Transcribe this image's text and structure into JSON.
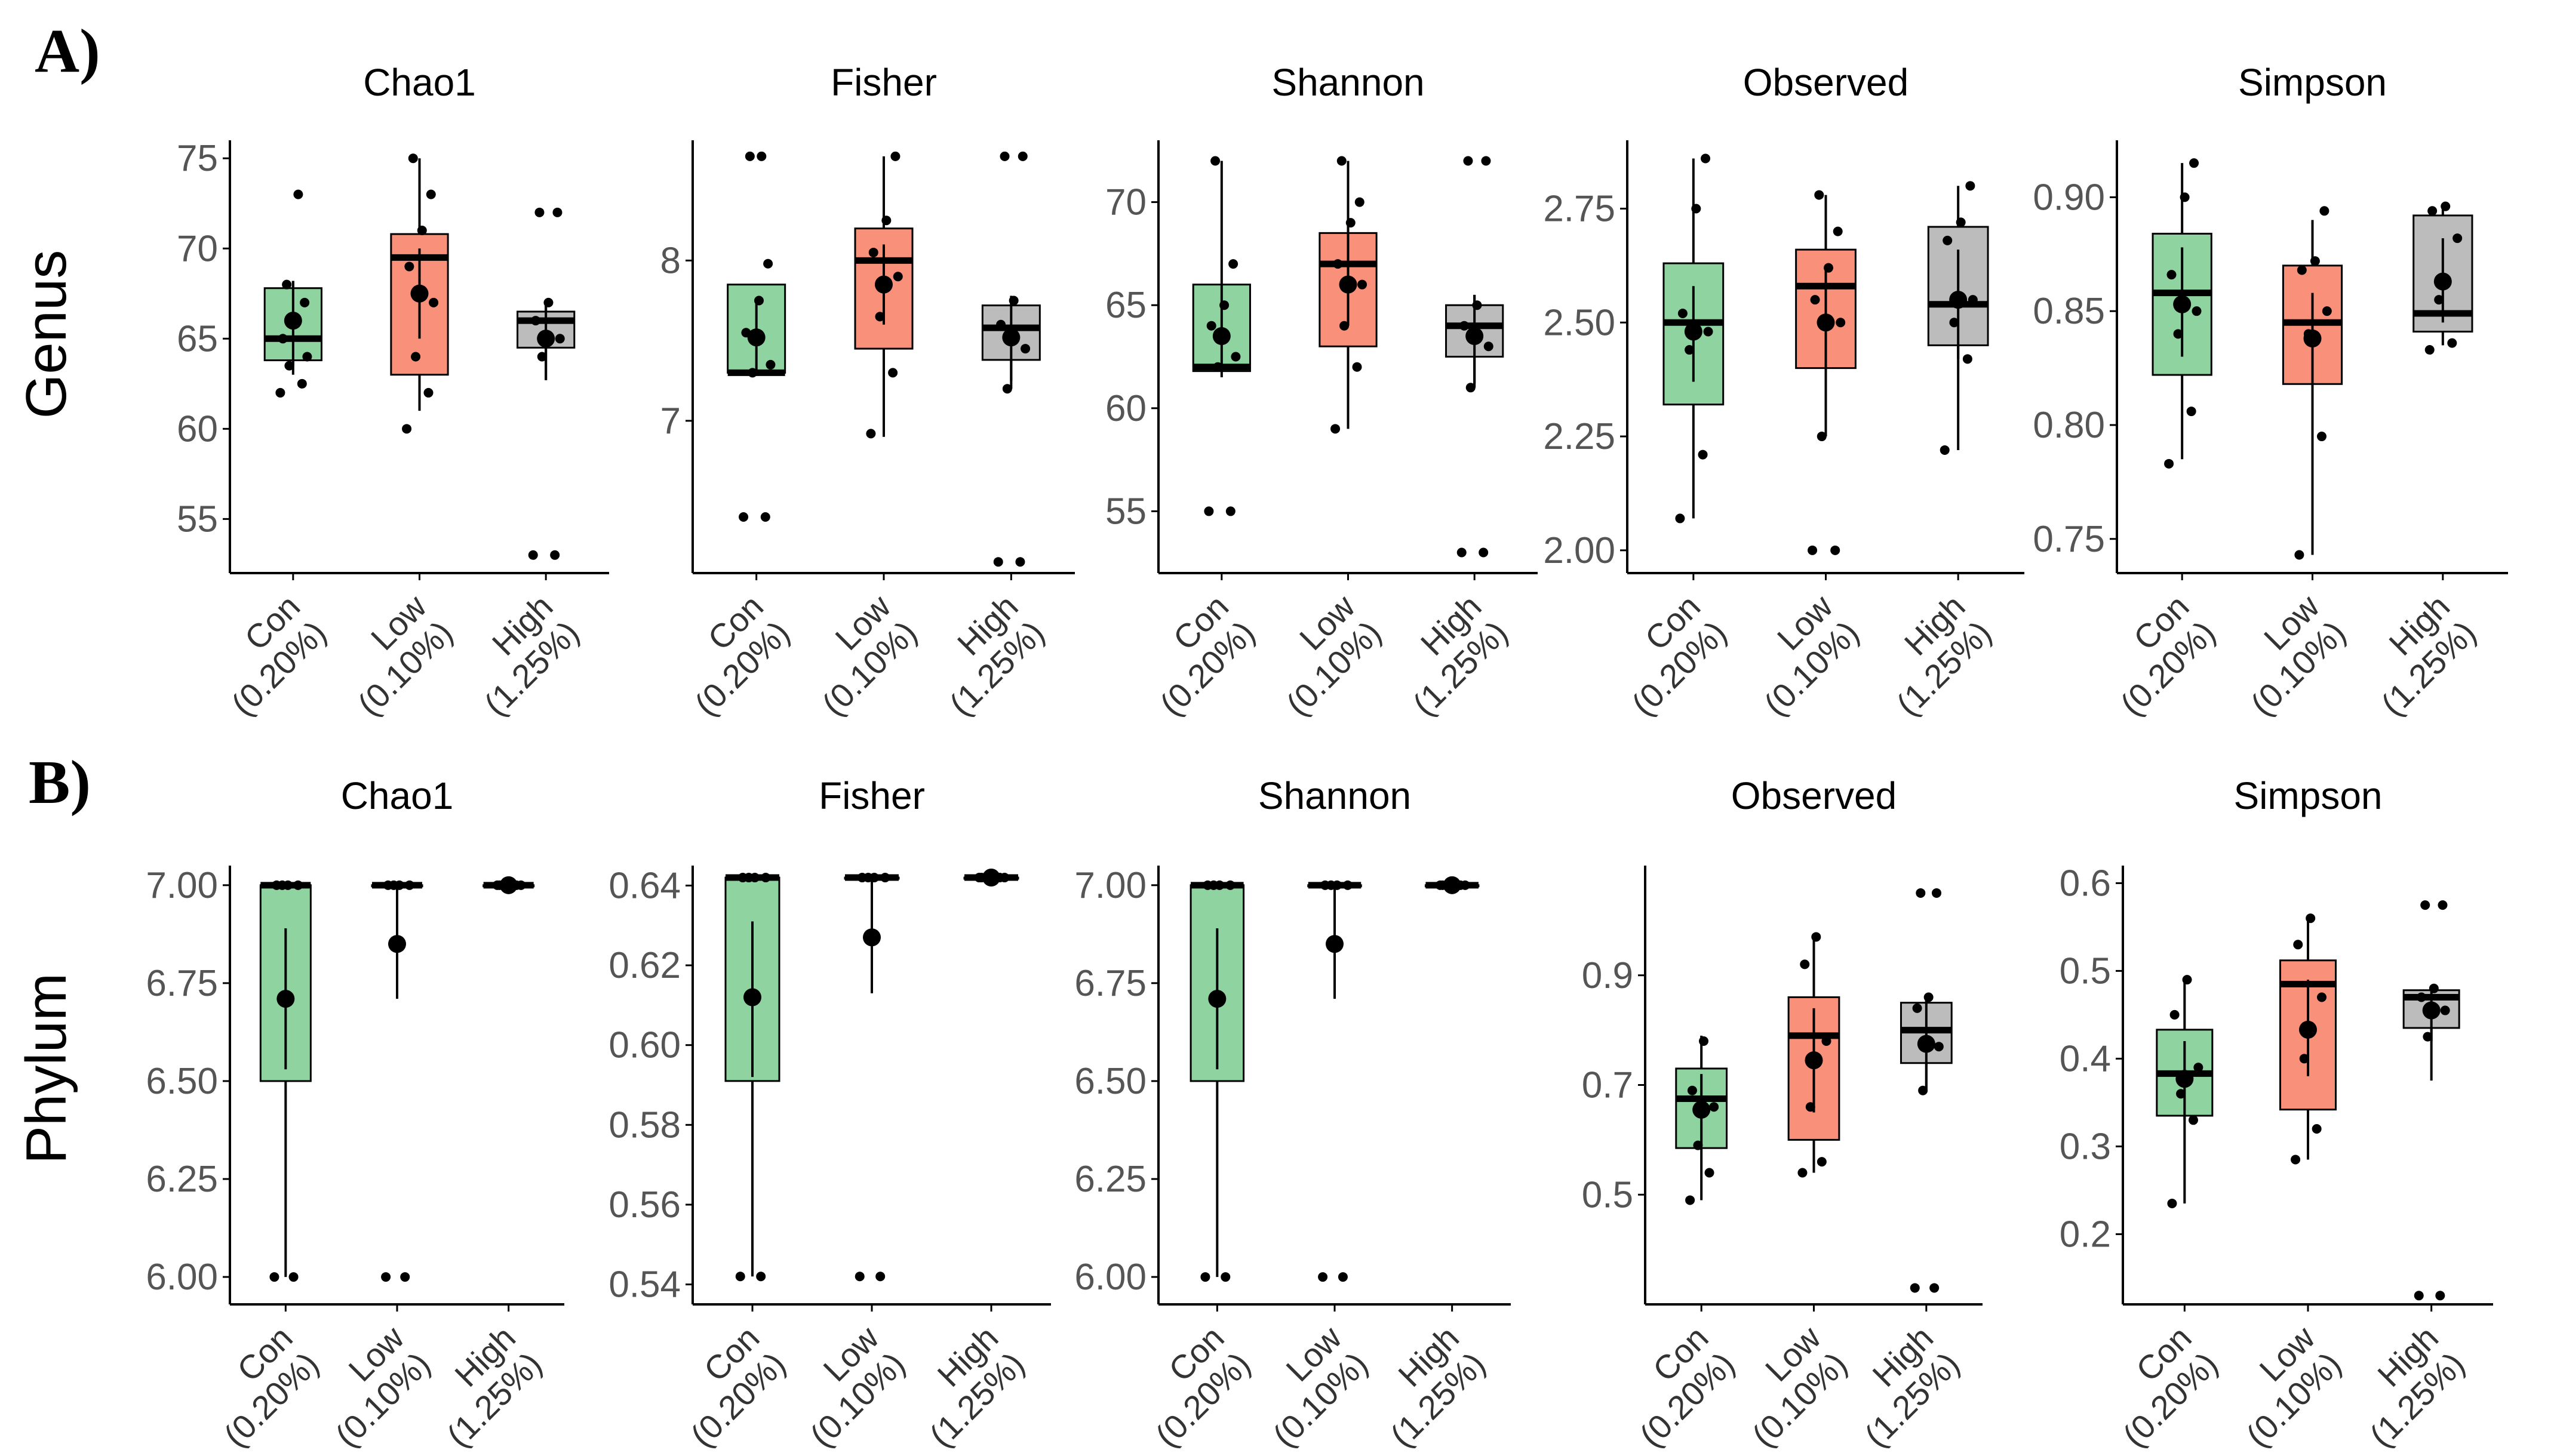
{
  "panels": [
    {
      "label": "A)",
      "row_label": "Genus"
    },
    {
      "label": "B)",
      "row_label": "Phylum"
    }
  ],
  "group_colors": {
    "Con": "#8fd4a0",
    "Low": "#f9917a",
    "High": "#bcbcbc"
  },
  "chart_data": [
    {
      "type": "box",
      "panel": "A",
      "title": "Chao1",
      "categories": [
        [
          "Con",
          "(0.20%)"
        ],
        [
          "Low",
          "(0.10%)"
        ],
        [
          "High",
          "(1.25%)"
        ]
      ],
      "ylim": [
        52,
        76
      ],
      "yticks": [
        55,
        60,
        65,
        70,
        75
      ],
      "ytick_labels": [
        "55",
        "60",
        "65",
        "70",
        "75"
      ],
      "groups": [
        {
          "name": "Con",
          "q1": 63.8,
          "median": 65.0,
          "q3": 67.8,
          "whisker_low": 63.0,
          "whisker_high": 68.2,
          "mean": 66.0,
          "mean_err": [
            63.5,
            68.2
          ],
          "points": [
            62,
            62.5,
            63.5,
            64,
            65,
            66,
            67,
            68,
            73
          ]
        },
        {
          "name": "Low",
          "q1": 63.0,
          "median": 69.5,
          "q3": 70.8,
          "whisker_low": 61.0,
          "whisker_high": 75.0,
          "mean": 67.5,
          "mean_err": [
            65.0,
            70.0
          ],
          "points": [
            60,
            62,
            64,
            67,
            69,
            71,
            73,
            75
          ]
        },
        {
          "name": "High",
          "q1": 64.5,
          "median": 66.0,
          "q3": 66.5,
          "whisker_low": 62.7,
          "whisker_high": 67.0,
          "mean": 65.0,
          "mean_err": [
            62.7,
            67.0
          ],
          "points": [
            53,
            53,
            64,
            65,
            66,
            67,
            72,
            72
          ]
        }
      ]
    },
    {
      "type": "box",
      "panel": "A",
      "title": "Fisher",
      "categories": [
        [
          "Con",
          "(0.20%)"
        ],
        [
          "Low",
          "(0.10%)"
        ],
        [
          "High",
          "(1.25%)"
        ]
      ],
      "ylim": [
        6.05,
        8.75
      ],
      "yticks": [
        7,
        8
      ],
      "ytick_labels": [
        "7",
        "8"
      ],
      "groups": [
        {
          "name": "Con",
          "q1": 7.3,
          "median": 7.3,
          "q3": 7.85,
          "whisker_low": 7.3,
          "whisker_high": 7.85,
          "mean": 7.52,
          "mean_err": [
            7.3,
            7.75
          ],
          "points": [
            6.4,
            6.4,
            7.3,
            7.35,
            7.55,
            7.75,
            7.98,
            8.65,
            8.65
          ]
        },
        {
          "name": "Low",
          "q1": 7.45,
          "median": 8.0,
          "q3": 8.2,
          "whisker_low": 6.9,
          "whisker_high": 8.65,
          "mean": 7.85,
          "mean_err": [
            7.6,
            8.1
          ],
          "points": [
            6.92,
            7.3,
            7.65,
            7.9,
            8.05,
            8.25,
            8.65
          ]
        },
        {
          "name": "High",
          "q1": 7.38,
          "median": 7.58,
          "q3": 7.72,
          "whisker_low": 7.2,
          "whisker_high": 7.78,
          "mean": 7.52,
          "mean_err": [
            7.25,
            7.75
          ],
          "points": [
            6.12,
            6.12,
            7.2,
            7.45,
            7.6,
            7.75,
            8.65,
            8.65
          ]
        }
      ]
    },
    {
      "type": "box",
      "panel": "A",
      "title": "Shannon",
      "categories": [
        [
          "Con",
          "(0.20%)"
        ],
        [
          "Low",
          "(0.10%)"
        ],
        [
          "High",
          "(1.25%)"
        ]
      ],
      "ylim": [
        52,
        73
      ],
      "yticks": [
        55,
        60,
        65,
        70
      ],
      "ytick_labels": [
        "55",
        "60",
        "65",
        "70"
      ],
      "groups": [
        {
          "name": "Con",
          "q1": 61.8,
          "median": 62.0,
          "q3": 66.0,
          "whisker_low": 61.8,
          "whisker_high": 72.0,
          "mean": 63.5,
          "mean_err": [
            61.5,
            66.0
          ],
          "points": [
            55,
            55,
            62,
            62.5,
            64,
            65,
            67,
            72
          ]
        },
        {
          "name": "Low",
          "q1": 63.0,
          "median": 67.0,
          "q3": 68.5,
          "whisker_low": 59.0,
          "whisker_high": 72.0,
          "mean": 66.0,
          "mean_err": [
            64.0,
            68.5
          ],
          "points": [
            59,
            62,
            64,
            66,
            67,
            69,
            70,
            72
          ]
        },
        {
          "name": "High",
          "q1": 62.5,
          "median": 64.0,
          "q3": 65.0,
          "whisker_low": 61.0,
          "whisker_high": 65.5,
          "mean": 63.5,
          "mean_err": [
            61.2,
            65.5
          ],
          "points": [
            53,
            53,
            61,
            63,
            64,
            65,
            72,
            72
          ]
        }
      ]
    },
    {
      "type": "box",
      "panel": "A",
      "title": "Observed",
      "categories": [
        [
          "Con",
          "(0.20%)"
        ],
        [
          "Low",
          "(0.10%)"
        ],
        [
          "High",
          "(1.25%)"
        ]
      ],
      "ylim": [
        1.95,
        2.9
      ],
      "yticks": [
        2.0,
        2.25,
        2.5,
        2.75
      ],
      "ytick_labels": [
        "2.00",
        "2.25",
        "2.50",
        "2.75"
      ],
      "groups": [
        {
          "name": "Con",
          "q1": 2.32,
          "median": 2.5,
          "q3": 2.63,
          "whisker_low": 2.07,
          "whisker_high": 2.86,
          "mean": 2.48,
          "mean_err": [
            2.37,
            2.58
          ],
          "points": [
            2.07,
            2.21,
            2.44,
            2.48,
            2.52,
            2.75,
            2.86
          ]
        },
        {
          "name": "Low",
          "q1": 2.4,
          "median": 2.58,
          "q3": 2.66,
          "whisker_low": 2.25,
          "whisker_high": 2.78,
          "mean": 2.5,
          "mean_err": [
            2.35,
            2.62
          ],
          "points": [
            2.0,
            2.0,
            2.25,
            2.5,
            2.55,
            2.62,
            2.7,
            2.78
          ]
        },
        {
          "name": "High",
          "q1": 2.45,
          "median": 2.54,
          "q3": 2.71,
          "whisker_low": 2.22,
          "whisker_high": 2.8,
          "mean": 2.55,
          "mean_err": [
            2.42,
            2.66
          ],
          "points": [
            2.22,
            2.42,
            2.5,
            2.55,
            2.68,
            2.72,
            2.8
          ]
        }
      ]
    },
    {
      "type": "box",
      "panel": "A",
      "title": "Simpson",
      "categories": [
        [
          "Con",
          "(0.20%)"
        ],
        [
          "Low",
          "(0.10%)"
        ],
        [
          "High",
          "(1.25%)"
        ]
      ],
      "ylim": [
        0.735,
        0.925
      ],
      "yticks": [
        0.75,
        0.8,
        0.85,
        0.9
      ],
      "ytick_labels": [
        "0.75",
        "0.80",
        "0.85",
        "0.90"
      ],
      "groups": [
        {
          "name": "Con",
          "q1": 0.822,
          "median": 0.858,
          "q3": 0.884,
          "whisker_low": 0.785,
          "whisker_high": 0.915,
          "mean": 0.853,
          "mean_err": [
            0.83,
            0.878
          ],
          "points": [
            0.783,
            0.806,
            0.84,
            0.85,
            0.866,
            0.9,
            0.915
          ]
        },
        {
          "name": "Low",
          "q1": 0.818,
          "median": 0.845,
          "q3": 0.87,
          "whisker_low": 0.743,
          "whisker_high": 0.89,
          "mean": 0.838,
          "mean_err": [
            0.818,
            0.858
          ],
          "points": [
            0.743,
            0.795,
            0.84,
            0.85,
            0.868,
            0.872,
            0.894
          ]
        },
        {
          "name": "High",
          "q1": 0.841,
          "median": 0.849,
          "q3": 0.892,
          "whisker_low": 0.835,
          "whisker_high": 0.895,
          "mean": 0.863,
          "mean_err": [
            0.845,
            0.882
          ],
          "points": [
            0.833,
            0.836,
            0.855,
            0.882,
            0.894,
            0.896
          ]
        }
      ]
    },
    {
      "type": "box",
      "panel": "B",
      "title": "Chao1",
      "categories": [
        [
          "Con",
          "(0.20%)"
        ],
        [
          "Low",
          "(0.10%)"
        ],
        [
          "High",
          "(1.25%)"
        ]
      ],
      "ylim": [
        5.93,
        7.05
      ],
      "yticks": [
        6.0,
        6.25,
        6.5,
        6.75,
        7.0
      ],
      "ytick_labels": [
        "6.00",
        "6.25",
        "6.50",
        "6.75",
        "7.00"
      ],
      "groups": [
        {
          "name": "Con",
          "q1": 6.5,
          "median": 7.0,
          "q3": 7.0,
          "whisker_low": 6.0,
          "whisker_high": 7.0,
          "mean": 6.71,
          "mean_err": [
            6.53,
            6.89
          ],
          "points": [
            6.0,
            6.0,
            7.0,
            7.0,
            7.0,
            7.0
          ]
        },
        {
          "name": "Low",
          "q1": 7.0,
          "median": 7.0,
          "q3": 7.0,
          "whisker_low": 7.0,
          "whisker_high": 7.0,
          "mean": 6.85,
          "mean_err": [
            6.71,
            7.0
          ],
          "points": [
            6.0,
            6.0,
            7.0,
            7.0,
            7.0,
            7.0
          ]
        },
        {
          "name": "High",
          "q1": 7.0,
          "median": 7.0,
          "q3": 7.0,
          "whisker_low": 7.0,
          "whisker_high": 7.0,
          "mean": 7.0,
          "mean_err": [
            7.0,
            7.0
          ],
          "points": [
            7.0,
            7.0,
            7.0,
            7.0,
            7.0,
            7.0
          ]
        }
      ]
    },
    {
      "type": "box",
      "panel": "B",
      "title": "Fisher",
      "categories": [
        [
          "Con",
          "(0.20%)"
        ],
        [
          "Low",
          "(0.10%)"
        ],
        [
          "High",
          "(1.25%)"
        ]
      ],
      "ylim": [
        0.535,
        0.645
      ],
      "yticks": [
        0.54,
        0.56,
        0.58,
        0.6,
        0.62,
        0.64
      ],
      "ytick_labels": [
        "0.54",
        "0.56",
        "0.58",
        "0.60",
        "0.62",
        "0.64"
      ],
      "groups": [
        {
          "name": "Con",
          "q1": 0.591,
          "median": 0.642,
          "q3": 0.642,
          "whisker_low": 0.542,
          "whisker_high": 0.642,
          "mean": 0.612,
          "mean_err": [
            0.592,
            0.631
          ],
          "points": [
            0.542,
            0.542,
            0.642,
            0.642,
            0.642,
            0.642
          ]
        },
        {
          "name": "Low",
          "q1": 0.642,
          "median": 0.642,
          "q3": 0.642,
          "whisker_low": 0.642,
          "whisker_high": 0.642,
          "mean": 0.627,
          "mean_err": [
            0.613,
            0.642
          ],
          "points": [
            0.542,
            0.542,
            0.642,
            0.642,
            0.642,
            0.642
          ]
        },
        {
          "name": "High",
          "q1": 0.642,
          "median": 0.642,
          "q3": 0.642,
          "whisker_low": 0.642,
          "whisker_high": 0.642,
          "mean": 0.642,
          "mean_err": [
            0.642,
            0.642
          ],
          "points": [
            0.642,
            0.642,
            0.642,
            0.642,
            0.642,
            0.642
          ]
        }
      ]
    },
    {
      "type": "box",
      "panel": "B",
      "title": "Shannon",
      "categories": [
        [
          "Con",
          "(0.20%)"
        ],
        [
          "Low",
          "(0.10%)"
        ],
        [
          "High",
          "(1.25%)"
        ]
      ],
      "ylim": [
        5.93,
        7.05
      ],
      "yticks": [
        6.0,
        6.25,
        6.5,
        6.75,
        7.0
      ],
      "ytick_labels": [
        "6.00",
        "6.25",
        "6.50",
        "6.75",
        "7.00"
      ],
      "groups": [
        {
          "name": "Con",
          "q1": 6.5,
          "median": 7.0,
          "q3": 7.0,
          "whisker_low": 6.0,
          "whisker_high": 7.0,
          "mean": 6.71,
          "mean_err": [
            6.53,
            6.89
          ],
          "points": [
            6.0,
            6.0,
            7.0,
            7.0,
            7.0,
            7.0
          ]
        },
        {
          "name": "Low",
          "q1": 7.0,
          "median": 7.0,
          "q3": 7.0,
          "whisker_low": 7.0,
          "whisker_high": 7.0,
          "mean": 6.85,
          "mean_err": [
            6.71,
            7.0
          ],
          "points": [
            6.0,
            6.0,
            7.0,
            7.0,
            7.0,
            7.0
          ]
        },
        {
          "name": "High",
          "q1": 7.0,
          "median": 7.0,
          "q3": 7.0,
          "whisker_low": 7.0,
          "whisker_high": 7.0,
          "mean": 7.0,
          "mean_err": [
            7.0,
            7.0
          ],
          "points": [
            7.0,
            7.0,
            7.0,
            7.0,
            7.0,
            7.0
          ]
        }
      ]
    },
    {
      "type": "box",
      "panel": "B",
      "title": "Observed",
      "categories": [
        [
          "Con",
          "(0.20%)"
        ],
        [
          "Low",
          "(0.10%)"
        ],
        [
          "High",
          "(1.25%)"
        ]
      ],
      "ylim": [
        0.3,
        1.1
      ],
      "yticks": [
        0.5,
        0.7,
        0.9
      ],
      "ytick_labels": [
        "0.5",
        "0.7",
        "0.9"
      ],
      "groups": [
        {
          "name": "Con",
          "q1": 0.585,
          "median": 0.675,
          "q3": 0.73,
          "whisker_low": 0.49,
          "whisker_high": 0.79,
          "mean": 0.655,
          "mean_err": [
            0.59,
            0.72
          ],
          "points": [
            0.49,
            0.54,
            0.59,
            0.66,
            0.69,
            0.78
          ]
        },
        {
          "name": "Low",
          "q1": 0.6,
          "median": 0.79,
          "q3": 0.86,
          "whisker_low": 0.54,
          "whisker_high": 0.97,
          "mean": 0.745,
          "mean_err": [
            0.65,
            0.84
          ],
          "points": [
            0.54,
            0.56,
            0.66,
            0.78,
            0.92,
            0.97
          ]
        },
        {
          "name": "High",
          "q1": 0.74,
          "median": 0.8,
          "q3": 0.85,
          "whisker_low": 0.69,
          "whisker_high": 0.86,
          "mean": 0.775,
          "mean_err": [
            0.69,
            0.86
          ],
          "points": [
            0.33,
            0.33,
            0.69,
            0.77,
            0.84,
            0.86,
            1.05,
            1.05
          ]
        }
      ]
    },
    {
      "type": "box",
      "panel": "B",
      "title": "Simpson",
      "categories": [
        [
          "Con",
          "(0.20%)"
        ],
        [
          "Low",
          "(0.10%)"
        ],
        [
          "High",
          "(1.25%)"
        ]
      ],
      "ylim": [
        0.12,
        0.62
      ],
      "yticks": [
        0.2,
        0.3,
        0.4,
        0.5,
        0.6
      ],
      "ytick_labels": [
        "0.2",
        "0.3",
        "0.4",
        "0.5",
        "0.6"
      ],
      "groups": [
        {
          "name": "Con",
          "q1": 0.335,
          "median": 0.383,
          "q3": 0.433,
          "whisker_low": 0.235,
          "whisker_high": 0.49,
          "mean": 0.377,
          "mean_err": [
            0.33,
            0.42
          ],
          "points": [
            0.235,
            0.33,
            0.36,
            0.39,
            0.45,
            0.49
          ]
        },
        {
          "name": "Low",
          "q1": 0.342,
          "median": 0.485,
          "q3": 0.512,
          "whisker_low": 0.285,
          "whisker_high": 0.56,
          "mean": 0.433,
          "mean_err": [
            0.38,
            0.49
          ],
          "points": [
            0.285,
            0.32,
            0.4,
            0.47,
            0.53,
            0.56
          ]
        },
        {
          "name": "High",
          "q1": 0.435,
          "median": 0.47,
          "q3": 0.478,
          "whisker_low": 0.375,
          "whisker_high": 0.478,
          "mean": 0.455,
          "mean_err": [
            0.42,
            0.478
          ],
          "points": [
            0.13,
            0.13,
            0.425,
            0.455,
            0.47,
            0.48,
            0.575,
            0.575
          ]
        }
      ]
    }
  ]
}
